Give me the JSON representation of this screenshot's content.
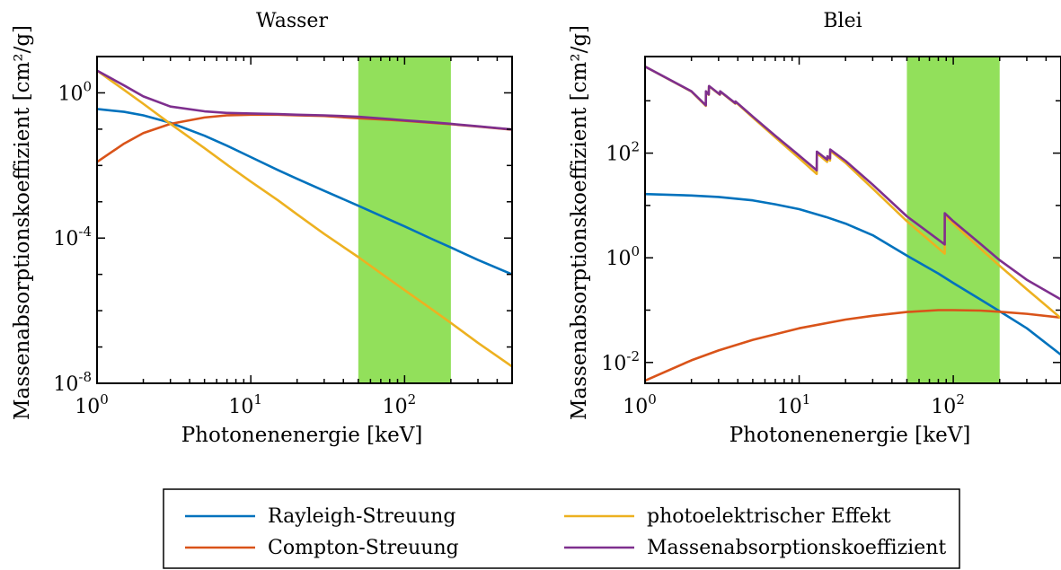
{
  "chart_data": [
    {
      "type": "line",
      "title": "Wasser",
      "xlabel": "Photonenenergie [keV]",
      "ylabel": "Massenabsorptionskoeffizient [cm²/g]",
      "xscale": "log",
      "yscale": "log",
      "xlim": [
        1,
        500
      ],
      "ylim": [
        1e-08,
        10
      ],
      "xticks": [
        {
          "base": "10",
          "exp": "0",
          "value": 1
        },
        {
          "base": "10",
          "exp": "1",
          "value": 10
        },
        {
          "base": "10",
          "exp": "2",
          "value": 100
        }
      ],
      "yticks": [
        {
          "base": "10",
          "exp": "-8",
          "value": 1e-08
        },
        {
          "base": "10",
          "exp": "-4",
          "value": 0.0001
        },
        {
          "base": "10",
          "exp": "0",
          "value": 1
        }
      ],
      "shaded_band": {
        "x": [
          50,
          200
        ],
        "color": "#92e05b"
      },
      "grid": false,
      "x": [
        1,
        1.5,
        2,
        3,
        5,
        7,
        10,
        15,
        20,
        30,
        50,
        80,
        100,
        150,
        200,
        300,
        500
      ],
      "series": [
        {
          "name": "Rayleigh-Streuung",
          "color": "#0072bd",
          "y": [
            0.36,
            0.3,
            0.24,
            0.15,
            0.066,
            0.035,
            0.017,
            0.0075,
            0.0043,
            0.002,
            0.00078,
            0.00032,
            0.00021,
            9.5e-05,
            5.5e-05,
            2.5e-05,
            1e-05
          ]
        },
        {
          "name": "Compton-Streuung",
          "color": "#d95319",
          "y": [
            0.0125,
            0.04,
            0.078,
            0.14,
            0.21,
            0.24,
            0.25,
            0.25,
            0.24,
            0.23,
            0.2,
            0.18,
            0.17,
            0.15,
            0.137,
            0.118,
            0.097
          ]
        },
        {
          "name": "photoelektrischer Effekt",
          "color": "#edb120",
          "y": [
            4.1,
            1.2,
            0.5,
            0.14,
            0.03,
            0.0105,
            0.0036,
            0.0011,
            0.00045,
            0.00013,
            3e-05,
            7.2e-06,
            3.7e-06,
            1.1e-06,
            4.6e-07,
            1.3e-07,
            2.9e-08
          ]
        },
        {
          "name": "Massenabsorptionskoeffizient",
          "color": "#7e2f8e",
          "y": [
            4.1,
            1.6,
            0.8,
            0.42,
            0.31,
            0.28,
            0.27,
            0.26,
            0.25,
            0.24,
            0.22,
            0.19,
            0.175,
            0.155,
            0.14,
            0.12,
            0.098
          ]
        }
      ]
    },
    {
      "type": "line",
      "title": "Blei",
      "xlabel": "Photonenenergie [keV]",
      "ylabel": "Massenabsorptionskoeffizient [cm²/g]",
      "xscale": "log",
      "yscale": "log",
      "xlim": [
        1,
        500
      ],
      "ylim": [
        0.004,
        7000
      ],
      "xticks": [
        {
          "base": "10",
          "exp": "0",
          "value": 1
        },
        {
          "base": "10",
          "exp": "1",
          "value": 10
        },
        {
          "base": "10",
          "exp": "2",
          "value": 100
        }
      ],
      "yticks": [
        {
          "base": "10",
          "exp": "-2",
          "value": 0.01
        },
        {
          "base": "10",
          "exp": "0",
          "value": 1
        },
        {
          "base": "10",
          "exp": "2",
          "value": 100
        }
      ],
      "shaded_band": {
        "x": [
          50,
          200
        ],
        "color": "#92e05b"
      },
      "grid": false,
      "series": [
        {
          "name": "Rayleigh-Streuung",
          "color": "#0072bd",
          "x": [
            1,
            2,
            3,
            5,
            7,
            10,
            15,
            20,
            30,
            50,
            80,
            100,
            150,
            200,
            300,
            500
          ],
          "y": [
            16.5,
            15.5,
            14.5,
            12.5,
            10.5,
            8.5,
            6,
            4.5,
            2.7,
            1.1,
            0.5,
            0.33,
            0.16,
            0.095,
            0.045,
            0.014
          ]
        },
        {
          "name": "Compton-Streuung",
          "color": "#d95319",
          "x": [
            1,
            2,
            3,
            5,
            10,
            20,
            30,
            50,
            80,
            100,
            150,
            200,
            300,
            500
          ],
          "y": [
            0.0045,
            0.011,
            0.017,
            0.027,
            0.045,
            0.066,
            0.078,
            0.092,
            0.1,
            0.1,
            0.098,
            0.093,
            0.085,
            0.072
          ]
        },
        {
          "name": "photoelektrischer Effekt",
          "color": "#edb120",
          "x": [
            1,
            2,
            2.48,
            2.484,
            2.59,
            2.6,
            3.06,
            3.07,
            3.85,
            3.86,
            5,
            7,
            10,
            13,
            13.03,
            15.2,
            15.25,
            15.86,
            15.9,
            20,
            30,
            50,
            88,
            88.1,
            100,
            150,
            200,
            300,
            500
          ],
          "y": [
            4500,
            1500,
            800,
            1500,
            1300,
            1900,
            1300,
            1500,
            880,
            950,
            480,
            200,
            80,
            40,
            100,
            68,
            80,
            72,
            110,
            65,
            21,
            5,
            1.2,
            6.5,
            4.5,
            1.5,
            0.7,
            0.25,
            0.07
          ]
        },
        {
          "name": "Massenabsorptionskoeffizient",
          "color": "#7e2f8e",
          "x": [
            1,
            2,
            2.48,
            2.484,
            2.59,
            2.6,
            3.06,
            3.07,
            3.85,
            3.86,
            5,
            7,
            10,
            13,
            13.03,
            15.2,
            15.25,
            15.86,
            15.9,
            20,
            30,
            50,
            88,
            88.1,
            100,
            150,
            200,
            300,
            500
          ],
          "y": [
            4500,
            1520,
            820,
            1520,
            1320,
            1920,
            1320,
            1520,
            900,
            970,
            500,
            215,
            90,
            47,
            107,
            75,
            87,
            79,
            117,
            71,
            25,
            6.2,
            1.8,
            7.1,
            5,
            1.85,
            0.9,
            0.38,
            0.16
          ]
        }
      ]
    }
  ],
  "legend": {
    "placement": "bottom-center",
    "entries": [
      {
        "label": "Rayleigh-Streuung",
        "color": "#0072bd"
      },
      {
        "label": "Compton-Streuung",
        "color": "#d95319"
      },
      {
        "label": "photoelektrischer Effekt",
        "color": "#edb120"
      },
      {
        "label": "Massenabsorptionskoeffizient",
        "color": "#7e2f8e"
      }
    ]
  }
}
